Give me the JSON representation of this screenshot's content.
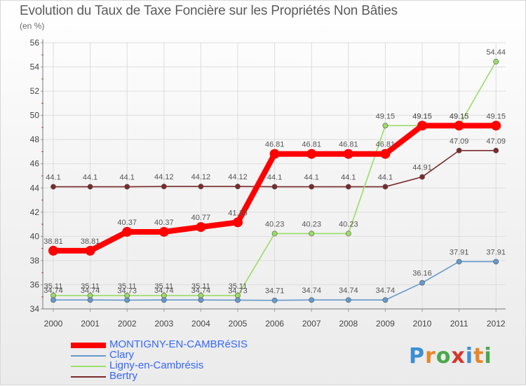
{
  "title": "Evolution du Taux de Taxe Foncière sur les Propriétés Non Bâties",
  "unit_label": "(en %)",
  "logo": {
    "letters": [
      "P",
      "r",
      "o",
      "x",
      "i",
      "t",
      "i"
    ],
    "colors": [
      "#3a8fd6",
      "#e8862a",
      "#48a848",
      "#d8342a",
      "#3a8fd6",
      "#e8862a",
      "#48a848"
    ]
  },
  "chart_data": {
    "type": "line",
    "title": "Evolution du Taux de Taxe Foncière sur les Propriétés Non Bâties",
    "ylabel": "(en %)",
    "xlabel": "",
    "categories": [
      "2000",
      "2001",
      "2002",
      "2003",
      "2004",
      "2005",
      "2006",
      "2007",
      "2008",
      "2009",
      "2010",
      "2011",
      "2012"
    ],
    "ylim": [
      34,
      56
    ],
    "yticks": [
      "34",
      "36",
      "38",
      "40",
      "42",
      "44",
      "46",
      "48",
      "50",
      "52",
      "54",
      "56"
    ],
    "grid": true,
    "series": [
      {
        "name": "MONTIGNY-EN-CAMBRéSIS",
        "color": "#ff0000",
        "legend_color": "#3366ff",
        "values": [
          38.81,
          38.81,
          40.37,
          40.37,
          40.77,
          41.16,
          46.81,
          46.81,
          46.81,
          46.81,
          49.15,
          49.15,
          49.15
        ],
        "labels": [
          "38.81",
          "38.81",
          "40.37",
          "40.37",
          "40.77",
          "41.16",
          "46.81",
          "46.81",
          "46.81",
          "46.81",
          "49.15",
          "49.15",
          "49.15"
        ]
      },
      {
        "name": "Clary",
        "color": "#6699cc",
        "legend_color": "#3366ff",
        "values": [
          34.74,
          34.74,
          34.73,
          34.74,
          34.74,
          34.73,
          34.71,
          34.74,
          34.74,
          34.74,
          36.16,
          37.91,
          37.91
        ],
        "labels": [
          "34.74",
          "34.74",
          "34.73",
          "34.74",
          "34.74",
          "34.73",
          "34.71",
          "34.74",
          "34.74",
          "34.74",
          "36.16",
          "37.91",
          "37.91"
        ]
      },
      {
        "name": "Ligny-en-Cambrésis",
        "color": "#99dd66",
        "legend_color": "#3366ff",
        "values": [
          35.11,
          35.11,
          35.11,
          35.11,
          35.11,
          35.11,
          40.23,
          40.23,
          40.23,
          49.15,
          49.15,
          49.15,
          54.44
        ],
        "labels": [
          "35.11",
          "35.11",
          "35.11",
          "35.11",
          "35.11",
          "35.11",
          "40.23",
          "40.23",
          "40.23",
          "49.15",
          "49.15",
          "49.15",
          "54.44"
        ]
      },
      {
        "name": "Bertry",
        "color": "#7a2a2a",
        "legend_color": "#3366ff",
        "values": [
          44.1,
          44.1,
          44.1,
          44.12,
          44.12,
          44.12,
          44.1,
          44.1,
          44.1,
          44.1,
          44.91,
          47.09,
          47.09
        ],
        "labels": [
          "44.1",
          "44.1",
          "44.1",
          "44.12",
          "44.12",
          "44.12",
          "44.1",
          "44.1",
          "44.1",
          "44.1",
          "44.91",
          "47.09",
          "47.09"
        ]
      }
    ]
  }
}
